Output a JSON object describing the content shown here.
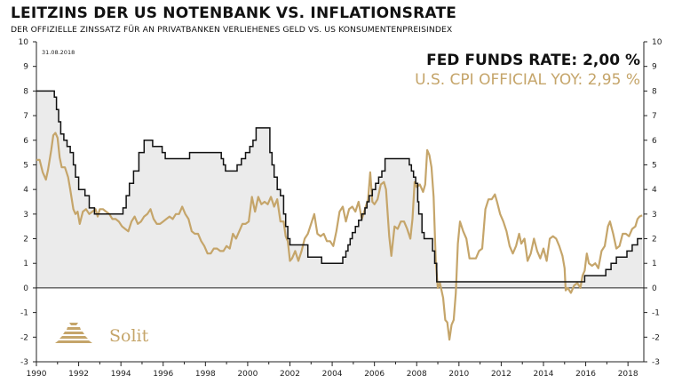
{
  "header": {
    "title": "LEITZINS DER US NOTENBANK VS. INFLATIONSRATE",
    "subtitle": "DER OFFIZIELLE ZINSSATZ FÜR AN PRIVATBANKEN VERLIEHENES GELD VS. US KONSUMENTENPREISINDEX"
  },
  "date_label": "31.08.2018",
  "legend": {
    "fed": "FED FUNDS RATE: 2,00 %",
    "cpi": "U.S. CPI OFFICIAL YOY: 2,95 %"
  },
  "logo": {
    "text": "Solit",
    "icon": "stepped-pyramid-icon"
  },
  "colors": {
    "fed": "#111111",
    "cpi": "#c5a56a",
    "fill": "#ebebeb",
    "axis": "#222222"
  },
  "chart_data": {
    "type": "line",
    "title": "LEITZINS DER US NOTENBANK VS. INFLATIONSRATE",
    "xlim": [
      1990,
      2018.75
    ],
    "ylim": [
      -3,
      10
    ],
    "x_ticks": [
      1990,
      1992,
      1994,
      1996,
      1998,
      2000,
      2002,
      2004,
      2006,
      2008,
      2010,
      2012,
      2014,
      2016,
      2018
    ],
    "y_ticks": [
      -3,
      -2,
      -1,
      0,
      1,
      2,
      3,
      4,
      5,
      6,
      7,
      8,
      9,
      10
    ],
    "grid": false,
    "legend_position": "top-right",
    "series": [
      {
        "name": "FED FUNDS RATE",
        "style": "step-filled",
        "points": [
          [
            1990.0,
            8.0
          ],
          [
            1990.8,
            8.0
          ],
          [
            1990.85,
            7.75
          ],
          [
            1990.95,
            7.25
          ],
          [
            1991.05,
            6.75
          ],
          [
            1991.15,
            6.25
          ],
          [
            1991.3,
            6.0
          ],
          [
            1991.45,
            5.75
          ],
          [
            1991.6,
            5.5
          ],
          [
            1991.75,
            5.0
          ],
          [
            1991.85,
            4.5
          ],
          [
            1992.0,
            4.0
          ],
          [
            1992.3,
            3.75
          ],
          [
            1992.5,
            3.25
          ],
          [
            1992.75,
            3.0
          ],
          [
            1994.1,
            3.25
          ],
          [
            1994.25,
            3.75
          ],
          [
            1994.4,
            4.25
          ],
          [
            1994.6,
            4.75
          ],
          [
            1994.85,
            5.5
          ],
          [
            1995.1,
            6.0
          ],
          [
            1995.5,
            5.75
          ],
          [
            1995.95,
            5.5
          ],
          [
            1996.1,
            5.25
          ],
          [
            1997.25,
            5.5
          ],
          [
            1998.75,
            5.25
          ],
          [
            1998.85,
            5.0
          ],
          [
            1998.95,
            4.75
          ],
          [
            1999.5,
            5.0
          ],
          [
            1999.7,
            5.25
          ],
          [
            1999.9,
            5.5
          ],
          [
            2000.1,
            5.75
          ],
          [
            2000.25,
            6.0
          ],
          [
            2000.4,
            6.5
          ],
          [
            2001.05,
            5.5
          ],
          [
            2001.15,
            5.0
          ],
          [
            2001.25,
            4.5
          ],
          [
            2001.4,
            4.0
          ],
          [
            2001.55,
            3.75
          ],
          [
            2001.7,
            3.0
          ],
          [
            2001.8,
            2.5
          ],
          [
            2001.9,
            2.0
          ],
          [
            2002.0,
            1.75
          ],
          [
            2002.85,
            1.25
          ],
          [
            2003.5,
            1.0
          ],
          [
            2004.5,
            1.25
          ],
          [
            2004.65,
            1.5
          ],
          [
            2004.75,
            1.75
          ],
          [
            2004.85,
            2.0
          ],
          [
            2004.95,
            2.25
          ],
          [
            2005.1,
            2.5
          ],
          [
            2005.25,
            2.75
          ],
          [
            2005.4,
            3.0
          ],
          [
            2005.55,
            3.25
          ],
          [
            2005.65,
            3.5
          ],
          [
            2005.75,
            3.75
          ],
          [
            2005.9,
            4.0
          ],
          [
            2006.05,
            4.25
          ],
          [
            2006.2,
            4.5
          ],
          [
            2006.35,
            4.75
          ],
          [
            2006.5,
            5.25
          ],
          [
            2007.65,
            5.0
          ],
          [
            2007.75,
            4.75
          ],
          [
            2007.85,
            4.5
          ],
          [
            2007.95,
            4.25
          ],
          [
            2008.05,
            3.5
          ],
          [
            2008.1,
            3.0
          ],
          [
            2008.25,
            2.25
          ],
          [
            2008.35,
            2.0
          ],
          [
            2008.75,
            1.5
          ],
          [
            2008.85,
            1.0
          ],
          [
            2008.95,
            0.25
          ],
          [
            2015.95,
            0.5
          ],
          [
            2016.95,
            0.75
          ],
          [
            2017.2,
            1.0
          ],
          [
            2017.45,
            1.25
          ],
          [
            2017.95,
            1.5
          ],
          [
            2018.2,
            1.75
          ],
          [
            2018.45,
            2.0
          ],
          [
            2018.67,
            2.0
          ]
        ]
      },
      {
        "name": "U.S. CPI OFFICIAL YOY",
        "style": "line",
        "points": [
          [
            1990.0,
            5.2
          ],
          [
            1990.15,
            5.2
          ],
          [
            1990.3,
            4.7
          ],
          [
            1990.45,
            4.4
          ],
          [
            1990.55,
            4.8
          ],
          [
            1990.7,
            5.6
          ],
          [
            1990.8,
            6.2
          ],
          [
            1990.9,
            6.3
          ],
          [
            1991.0,
            6.1
          ],
          [
            1991.1,
            5.3
          ],
          [
            1991.2,
            4.9
          ],
          [
            1991.35,
            4.9
          ],
          [
            1991.5,
            4.5
          ],
          [
            1991.6,
            4.0
          ],
          [
            1991.75,
            3.2
          ],
          [
            1991.85,
            3.0
          ],
          [
            1991.95,
            3.1
          ],
          [
            1992.05,
            2.6
          ],
          [
            1992.2,
            3.1
          ],
          [
            1992.35,
            3.2
          ],
          [
            1992.5,
            3.0
          ],
          [
            1992.65,
            3.1
          ],
          [
            1992.8,
            3.2
          ],
          [
            1992.9,
            2.9
          ],
          [
            1993.0,
            3.2
          ],
          [
            1993.15,
            3.2
          ],
          [
            1993.3,
            3.1
          ],
          [
            1993.45,
            3.0
          ],
          [
            1993.6,
            2.8
          ],
          [
            1993.75,
            2.8
          ],
          [
            1993.9,
            2.7
          ],
          [
            1994.05,
            2.5
          ],
          [
            1994.2,
            2.4
          ],
          [
            1994.35,
            2.3
          ],
          [
            1994.5,
            2.7
          ],
          [
            1994.65,
            2.9
          ],
          [
            1994.8,
            2.6
          ],
          [
            1994.95,
            2.7
          ],
          [
            1995.1,
            2.9
          ],
          [
            1995.25,
            3.0
          ],
          [
            1995.4,
            3.2
          ],
          [
            1995.55,
            2.8
          ],
          [
            1995.7,
            2.6
          ],
          [
            1995.85,
            2.6
          ],
          [
            1996.0,
            2.7
          ],
          [
            1996.15,
            2.8
          ],
          [
            1996.3,
            2.9
          ],
          [
            1996.45,
            2.8
          ],
          [
            1996.6,
            3.0
          ],
          [
            1996.75,
            3.0
          ],
          [
            1996.9,
            3.3
          ],
          [
            1997.05,
            3.0
          ],
          [
            1997.2,
            2.8
          ],
          [
            1997.35,
            2.3
          ],
          [
            1997.5,
            2.2
          ],
          [
            1997.65,
            2.2
          ],
          [
            1997.8,
            1.9
          ],
          [
            1997.95,
            1.7
          ],
          [
            1998.1,
            1.4
          ],
          [
            1998.25,
            1.4
          ],
          [
            1998.4,
            1.6
          ],
          [
            1998.55,
            1.6
          ],
          [
            1998.7,
            1.5
          ],
          [
            1998.85,
            1.5
          ],
          [
            1999.0,
            1.7
          ],
          [
            1999.15,
            1.6
          ],
          [
            1999.3,
            2.2
          ],
          [
            1999.45,
            2.0
          ],
          [
            1999.6,
            2.3
          ],
          [
            1999.75,
            2.6
          ],
          [
            1999.9,
            2.6
          ],
          [
            2000.05,
            2.7
          ],
          [
            2000.2,
            3.7
          ],
          [
            2000.35,
            3.1
          ],
          [
            2000.5,
            3.7
          ],
          [
            2000.65,
            3.4
          ],
          [
            2000.8,
            3.5
          ],
          [
            2000.95,
            3.4
          ],
          [
            2001.1,
            3.7
          ],
          [
            2001.25,
            3.3
          ],
          [
            2001.4,
            3.6
          ],
          [
            2001.55,
            2.7
          ],
          [
            2001.7,
            2.7
          ],
          [
            2001.8,
            2.1
          ],
          [
            2001.9,
            1.9
          ],
          [
            2002.0,
            1.1
          ],
          [
            2002.1,
            1.2
          ],
          [
            2002.25,
            1.5
          ],
          [
            2002.4,
            1.1
          ],
          [
            2002.55,
            1.5
          ],
          [
            2002.7,
            2.0
          ],
          [
            2002.85,
            2.2
          ],
          [
            2003.0,
            2.6
          ],
          [
            2003.15,
            3.0
          ],
          [
            2003.3,
            2.2
          ],
          [
            2003.45,
            2.1
          ],
          [
            2003.6,
            2.2
          ],
          [
            2003.75,
            1.9
          ],
          [
            2003.9,
            1.9
          ],
          [
            2004.05,
            1.7
          ],
          [
            2004.2,
            2.3
          ],
          [
            2004.35,
            3.1
          ],
          [
            2004.5,
            3.3
          ],
          [
            2004.65,
            2.7
          ],
          [
            2004.8,
            3.2
          ],
          [
            2004.95,
            3.3
          ],
          [
            2005.1,
            3.1
          ],
          [
            2005.25,
            3.5
          ],
          [
            2005.4,
            2.8
          ],
          [
            2005.55,
            3.2
          ],
          [
            2005.7,
            3.6
          ],
          [
            2005.8,
            4.7
          ],
          [
            2005.9,
            3.5
          ],
          [
            2006.0,
            3.4
          ],
          [
            2006.15,
            3.6
          ],
          [
            2006.3,
            4.2
          ],
          [
            2006.45,
            4.3
          ],
          [
            2006.55,
            4.0
          ],
          [
            2006.7,
            2.1
          ],
          [
            2006.8,
            1.3
          ],
          [
            2006.95,
            2.5
          ],
          [
            2007.1,
            2.4
          ],
          [
            2007.25,
            2.7
          ],
          [
            2007.4,
            2.7
          ],
          [
            2007.55,
            2.4
          ],
          [
            2007.7,
            2.0
          ],
          [
            2007.8,
            2.8
          ],
          [
            2007.9,
            4.3
          ],
          [
            2008.0,
            4.1
          ],
          [
            2008.15,
            4.2
          ],
          [
            2008.3,
            3.9
          ],
          [
            2008.4,
            4.2
          ],
          [
            2008.5,
            5.6
          ],
          [
            2008.6,
            5.4
          ],
          [
            2008.7,
            4.9
          ],
          [
            2008.8,
            3.7
          ],
          [
            2008.9,
            1.1
          ],
          [
            2009.0,
            0.0
          ],
          [
            2009.1,
            0.2
          ],
          [
            2009.25,
            -0.4
          ],
          [
            2009.35,
            -1.3
          ],
          [
            2009.45,
            -1.4
          ],
          [
            2009.55,
            -2.1
          ],
          [
            2009.65,
            -1.5
          ],
          [
            2009.75,
            -1.3
          ],
          [
            2009.85,
            -0.2
          ],
          [
            2009.95,
            1.8
          ],
          [
            2010.05,
            2.7
          ],
          [
            2010.2,
            2.3
          ],
          [
            2010.35,
            2.0
          ],
          [
            2010.5,
            1.2
          ],
          [
            2010.65,
            1.2
          ],
          [
            2010.8,
            1.2
          ],
          [
            2010.95,
            1.5
          ],
          [
            2011.1,
            1.6
          ],
          [
            2011.25,
            3.2
          ],
          [
            2011.4,
            3.6
          ],
          [
            2011.55,
            3.6
          ],
          [
            2011.7,
            3.8
          ],
          [
            2011.8,
            3.5
          ],
          [
            2011.95,
            3.0
          ],
          [
            2012.1,
            2.7
          ],
          [
            2012.25,
            2.3
          ],
          [
            2012.4,
            1.7
          ],
          [
            2012.55,
            1.4
          ],
          [
            2012.7,
            1.7
          ],
          [
            2012.85,
            2.2
          ],
          [
            2012.95,
            1.8
          ],
          [
            2013.1,
            2.0
          ],
          [
            2013.25,
            1.1
          ],
          [
            2013.4,
            1.4
          ],
          [
            2013.55,
            2.0
          ],
          [
            2013.7,
            1.5
          ],
          [
            2013.85,
            1.2
          ],
          [
            2014.0,
            1.6
          ],
          [
            2014.15,
            1.1
          ],
          [
            2014.3,
            2.0
          ],
          [
            2014.45,
            2.1
          ],
          [
            2014.6,
            2.0
          ],
          [
            2014.75,
            1.7
          ],
          [
            2014.9,
            1.3
          ],
          [
            2015.0,
            0.8
          ],
          [
            2015.05,
            -0.1
          ],
          [
            2015.15,
            0.0
          ],
          [
            2015.3,
            -0.2
          ],
          [
            2015.45,
            0.1
          ],
          [
            2015.6,
            0.2
          ],
          [
            2015.75,
            0.0
          ],
          [
            2015.85,
            0.5
          ],
          [
            2015.95,
            0.7
          ],
          [
            2016.05,
            1.4
          ],
          [
            2016.15,
            1.0
          ],
          [
            2016.3,
            0.9
          ],
          [
            2016.45,
            1.0
          ],
          [
            2016.6,
            0.8
          ],
          [
            2016.75,
            1.5
          ],
          [
            2016.9,
            1.7
          ],
          [
            2017.05,
            2.5
          ],
          [
            2017.15,
            2.7
          ],
          [
            2017.3,
            2.2
          ],
          [
            2017.45,
            1.6
          ],
          [
            2017.6,
            1.7
          ],
          [
            2017.75,
            2.2
          ],
          [
            2017.9,
            2.2
          ],
          [
            2018.05,
            2.1
          ],
          [
            2018.2,
            2.4
          ],
          [
            2018.35,
            2.5
          ],
          [
            2018.45,
            2.8
          ],
          [
            2018.55,
            2.9
          ],
          [
            2018.67,
            2.95
          ]
        ]
      }
    ]
  }
}
